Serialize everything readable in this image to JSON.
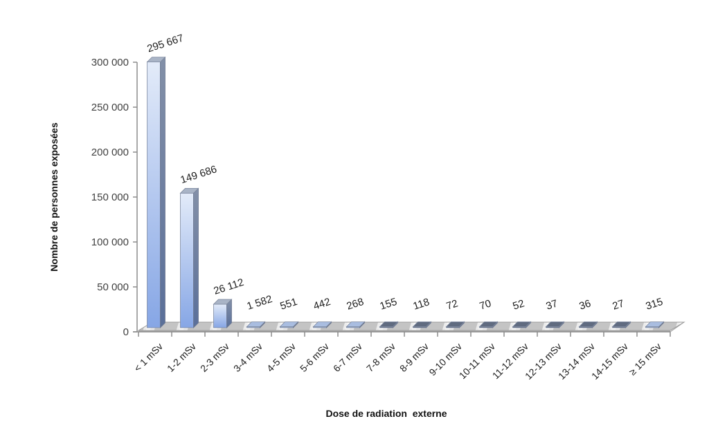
{
  "chart_data": {
    "type": "bar",
    "style": "3d-column",
    "title": "",
    "xlabel": "Dose de radiation  externe",
    "ylabel": "Nombre de personnes exposées",
    "ylim": [
      0,
      300000
    ],
    "yticks": [
      0,
      50000,
      100000,
      150000,
      200000,
      250000,
      300000
    ],
    "ytick_labels": [
      "0",
      "50 000",
      "100 000",
      "150 000",
      "200 000",
      "250 000",
      "300 000"
    ],
    "grid": false,
    "legend": null,
    "categories": [
      "< 1  mSv",
      "1-2  mSv",
      "2-3 mSv",
      "3-4 mSv",
      "4-5 mSv",
      "5-6 mSv",
      "6-7 mSv",
      "7-8 mSv",
      "8-9 mSv",
      "9-10 mSv",
      "10-11 mSv",
      "11-12 mSv",
      "12-13 mSv",
      "13-14 mSv",
      "14-15 mSv",
      "≥ 15 mSv"
    ],
    "values": [
      295667,
      149686,
      26112,
      1582,
      551,
      442,
      268,
      155,
      118,
      72,
      70,
      52,
      37,
      36,
      27,
      315
    ],
    "data_labels": [
      "295 667",
      "149 686",
      "26 112",
      "1 582",
      "551",
      "442",
      "268",
      "155",
      "118",
      "72",
      "70",
      "52",
      "37",
      "36",
      "27",
      "315"
    ]
  },
  "colors": {
    "bar_top": "#dfe8f8",
    "bar_bottom": "#8aa9e6",
    "bar_side": "#6b7ea3",
    "bar_cap": "#a9b4c6",
    "floor": "#bfbfbf",
    "axis": "#8c8c8c"
  }
}
